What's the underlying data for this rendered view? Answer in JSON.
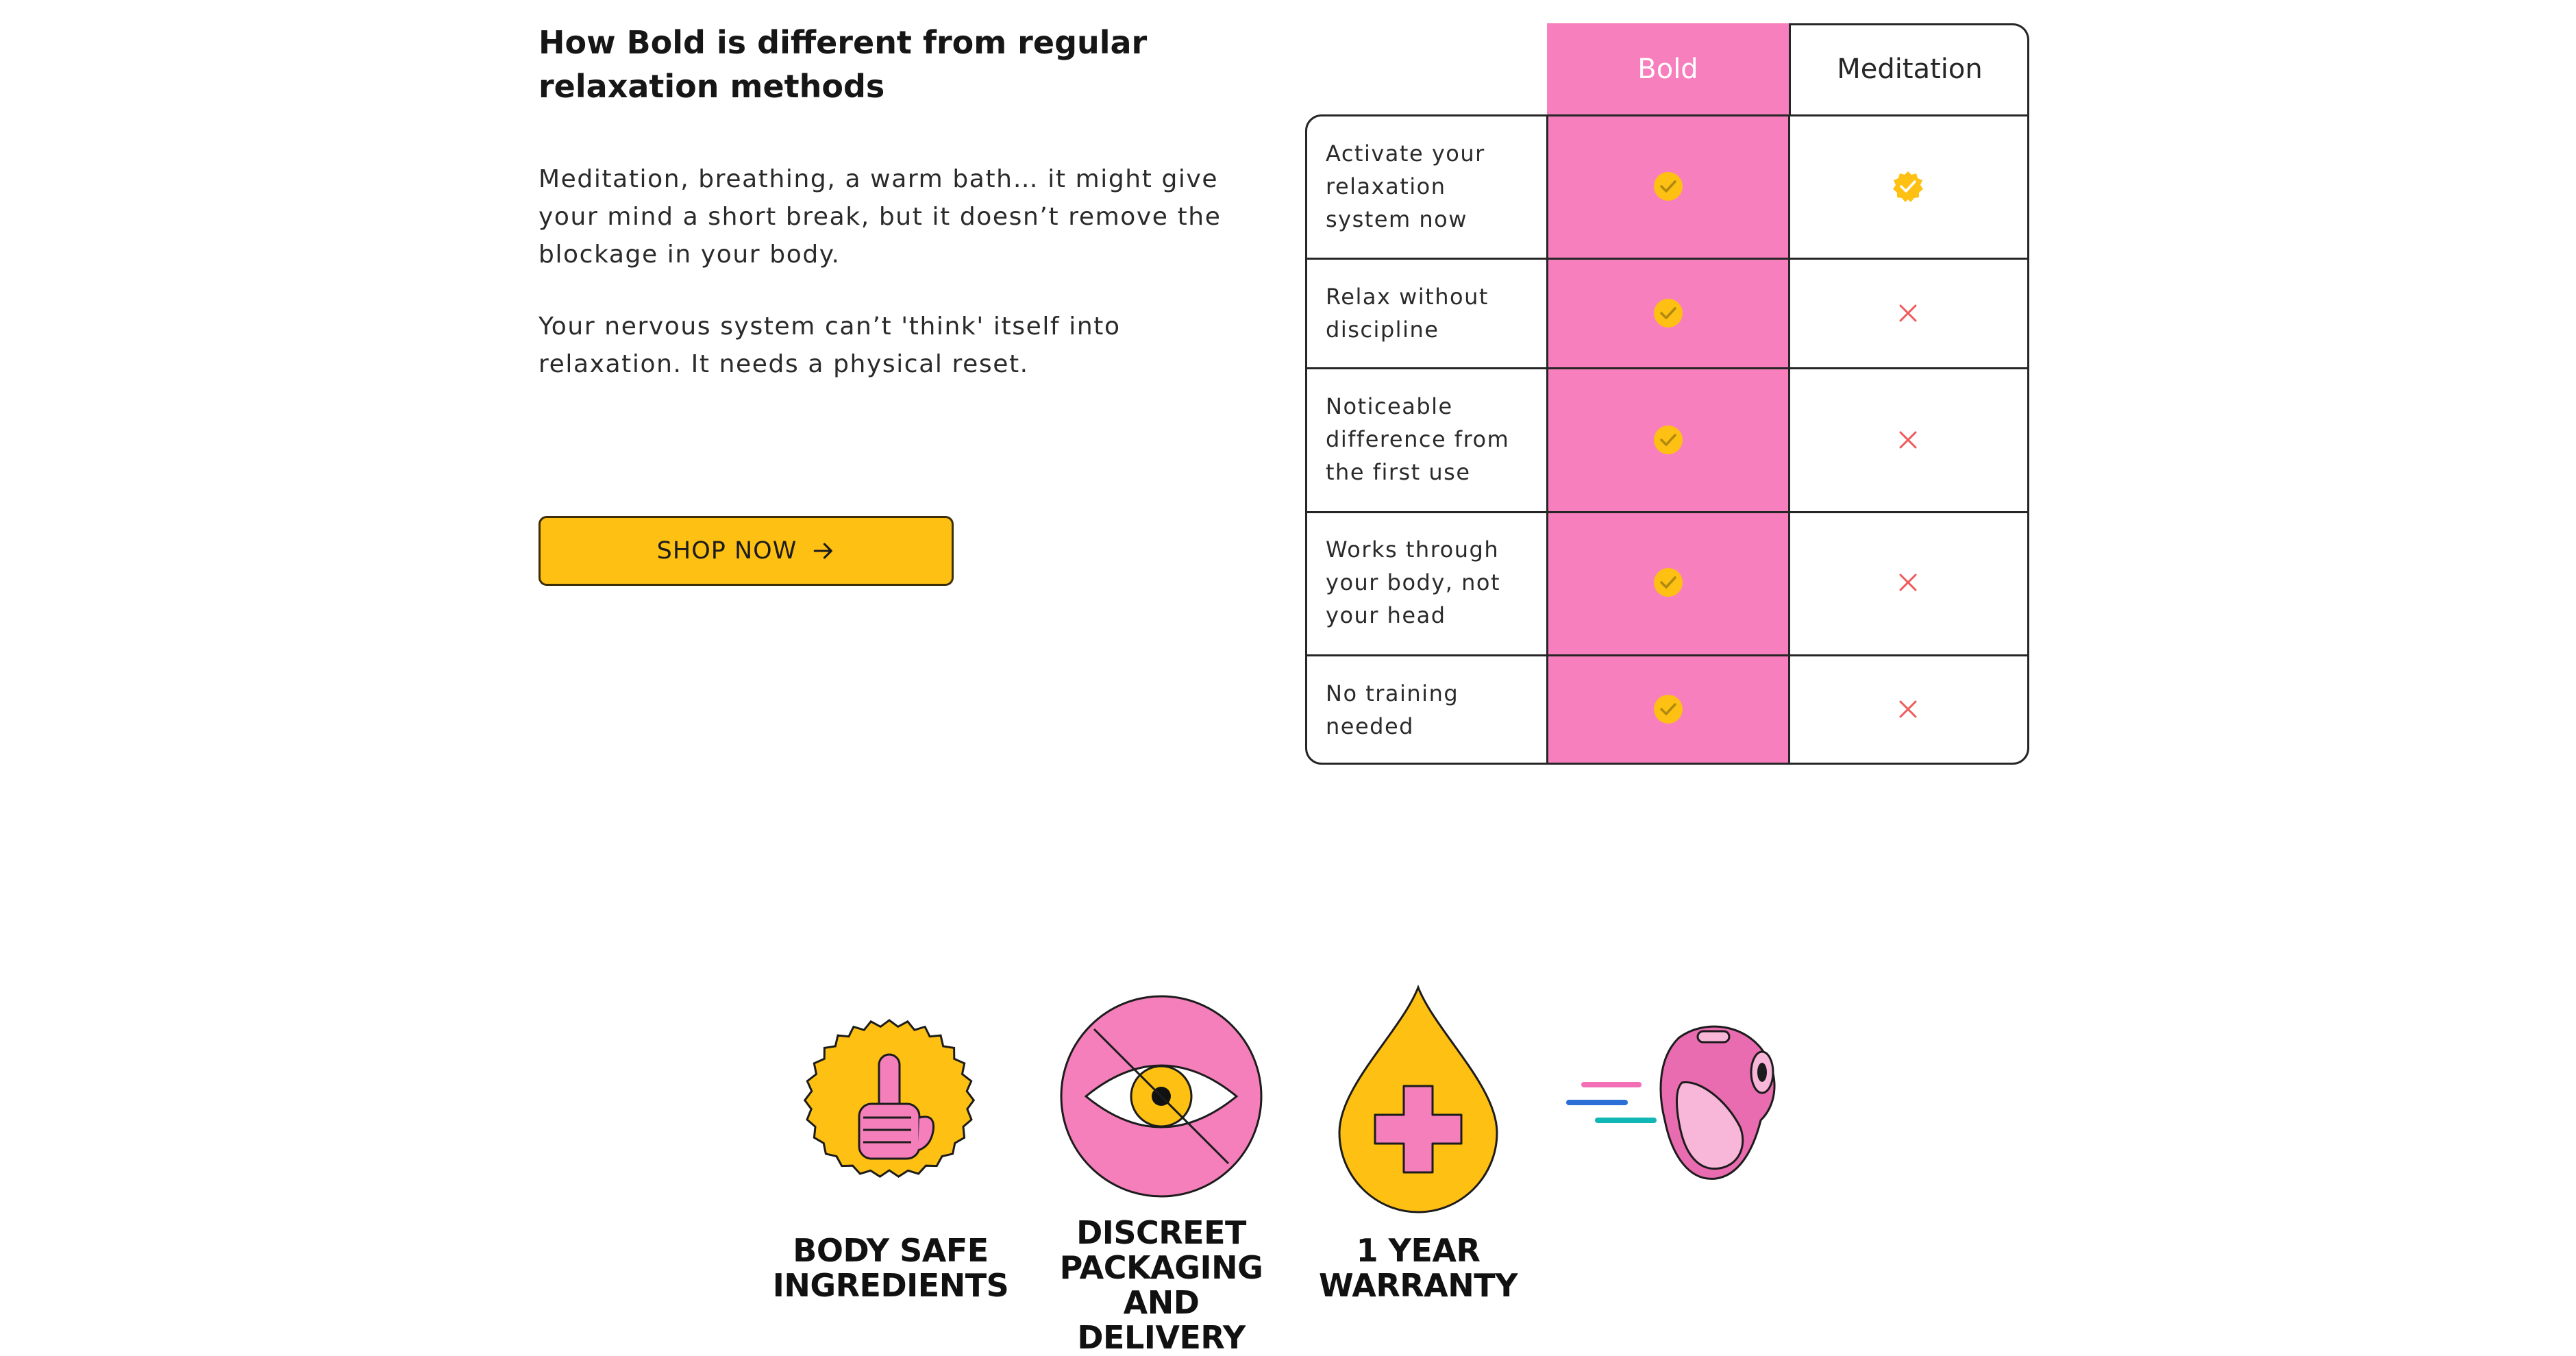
{
  "section": {
    "heading": "How Bold is different from regular relaxation methods",
    "paragraph_1": "Meditation, breathing, a warm bath… it might give your mind a short break, but it doesn’t remove the blockage in your body.",
    "paragraph_2": "Your nervous system can’t 'think' itself into relaxation. It needs a physical reset.",
    "cta_label": "SHOP NOW",
    "cta_icon": "arrow-right-icon"
  },
  "comparison": {
    "columns": [
      "Bold",
      "Meditation"
    ],
    "rows": [
      {
        "label": "Activate your relaxation system now",
        "bold": "check",
        "meditation": "check"
      },
      {
        "label": "Relax without discipline",
        "bold": "check",
        "meditation": "cross"
      },
      {
        "label": "Noticeable difference from the first use",
        "bold": "check",
        "meditation": "cross"
      },
      {
        "label": "Works through your body, not your head",
        "bold": "check",
        "meditation": "cross"
      },
      {
        "label": "No training needed",
        "bold": "check",
        "meditation": "cross"
      }
    ]
  },
  "badges": [
    {
      "title": "BODY SAFE\nINGREDIENTS",
      "icon": "raised-finger-seal-icon"
    },
    {
      "title": "DISCREET\nPACKAGING AND\nDELIVERY",
      "icon": "crossed-eye-icon"
    },
    {
      "title": "1 YEAR\nWARRANTY",
      "icon": "drop-plus-icon"
    },
    {
      "title": "",
      "icon": "product-device-icon"
    }
  ],
  "colors": {
    "accent_yellow": "#fec012",
    "accent_pink": "#f87fbd",
    "cross_red": "#f05a5a",
    "text_dark": "#1c1c1c"
  }
}
